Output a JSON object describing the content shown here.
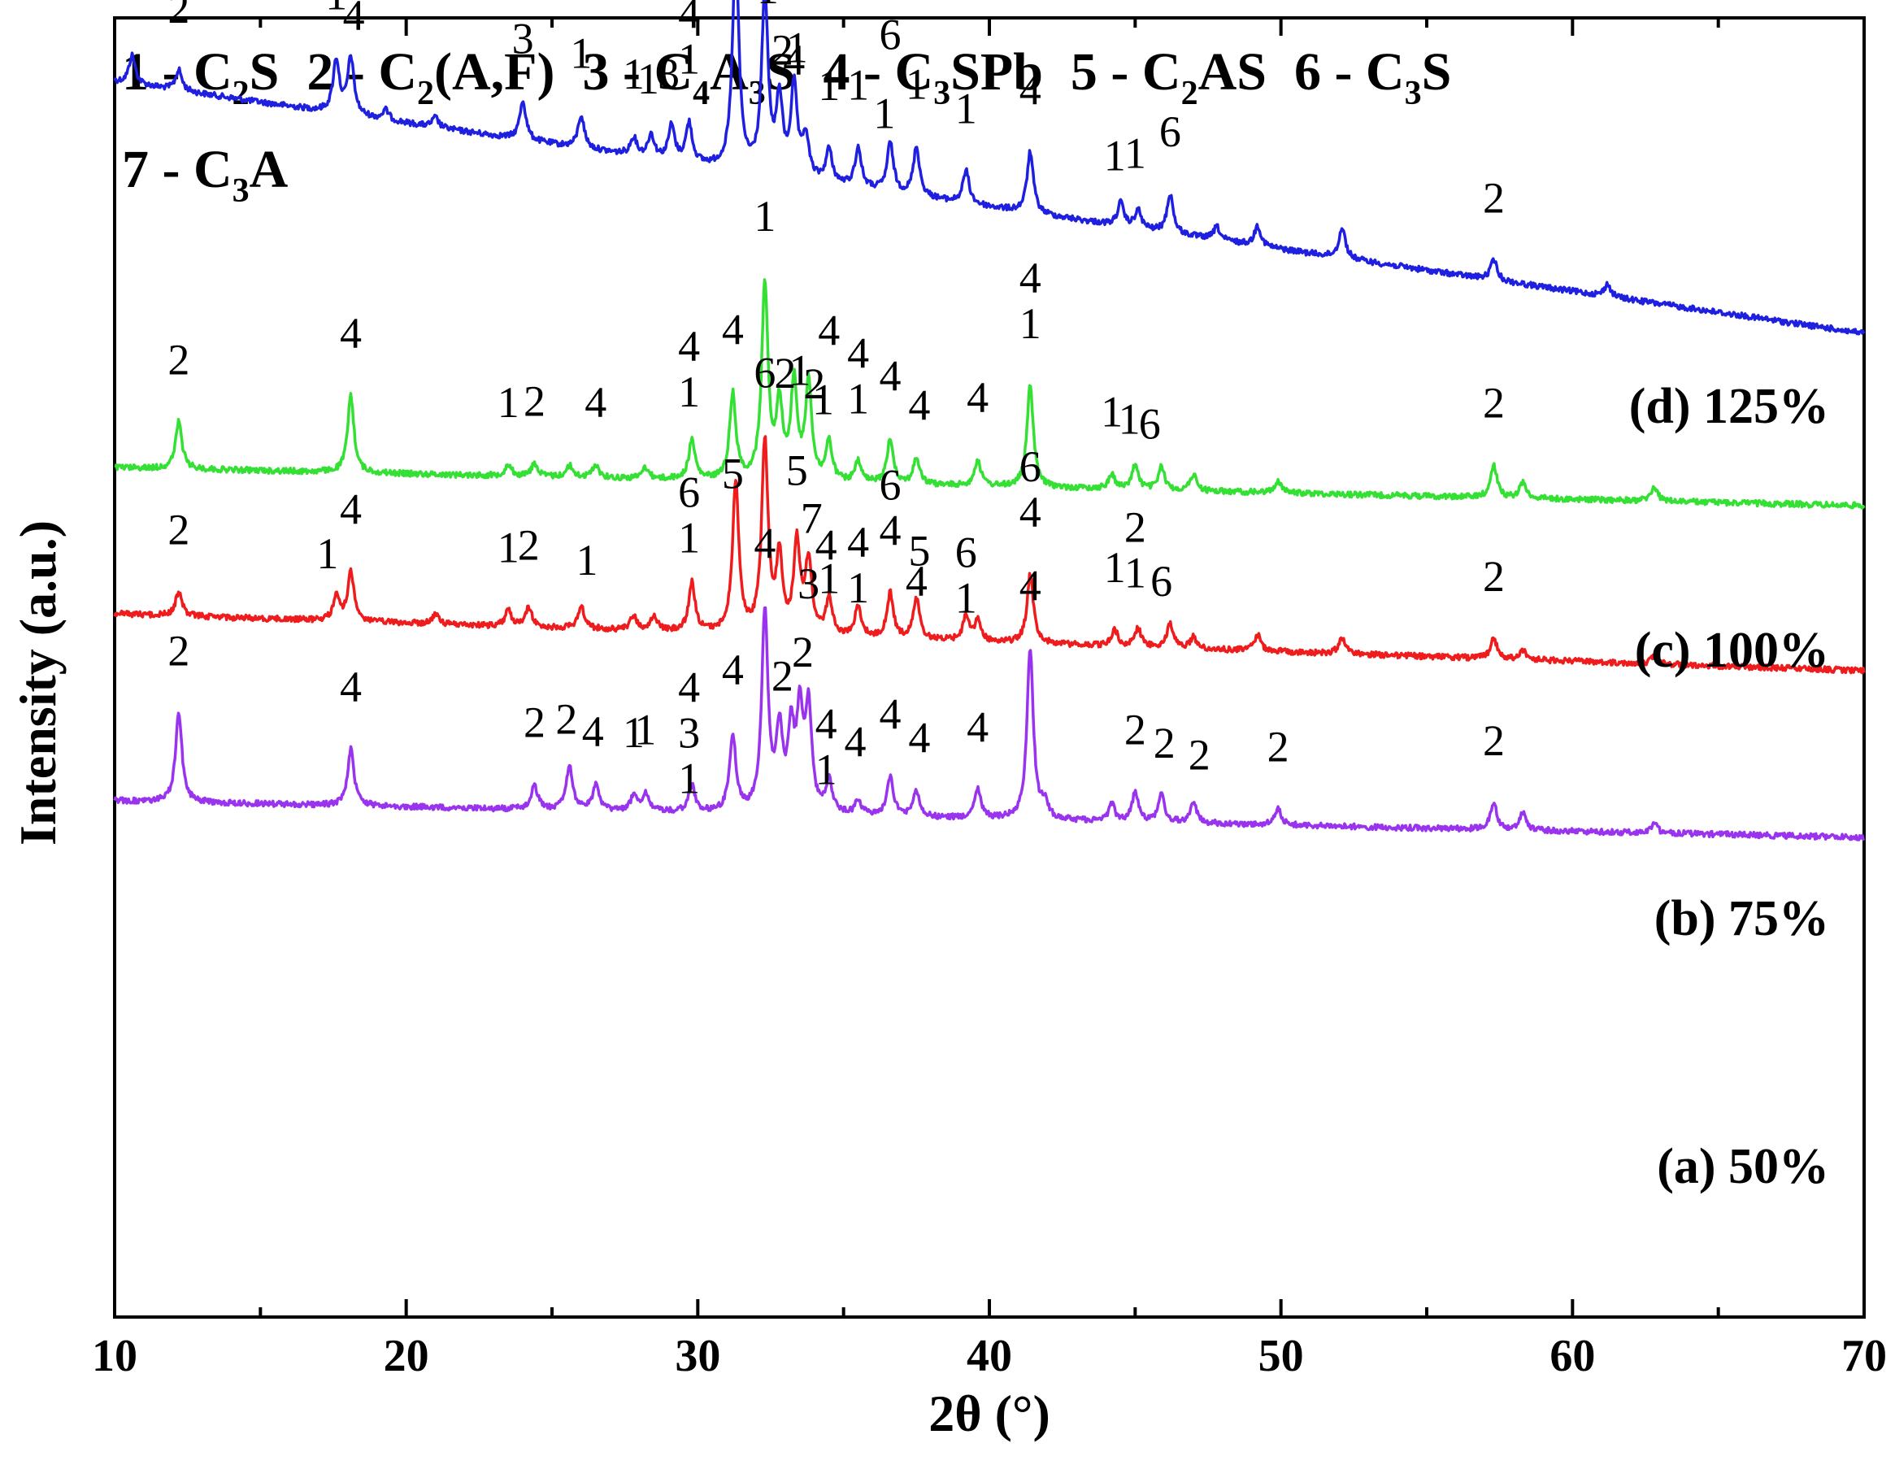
{
  "chart_data": {
    "type": "line",
    "xlabel": "2θ (°)",
    "ylabel": "Intensity (a.u.)",
    "xlim": [
      10,
      70
    ],
    "x_ticks": [
      "10",
      "20",
      "30",
      "40",
      "50",
      "60",
      "70"
    ],
    "y_ticks": "none",
    "grid": false,
    "legend": {
      "position": "top-left",
      "line1": [
        {
          "num": "1 - ",
          "base": "C",
          "parts": [
            [
              "2",
              true
            ],
            [
              "S",
              false
            ]
          ]
        },
        {
          "num": "2 - ",
          "base": "C",
          "parts": [
            [
              "2",
              true
            ],
            [
              "(A,F)",
              false
            ]
          ]
        },
        {
          "num": "3 - ",
          "base": "C",
          "parts": [
            [
              "4",
              true
            ],
            [
              "A",
              false
            ],
            [
              "3",
              true
            ],
            [
              "S",
              false
            ]
          ]
        },
        {
          "num": "4 - ",
          "base": "C",
          "parts": [
            [
              "3",
              true
            ],
            [
              "SPb",
              false
            ]
          ]
        },
        {
          "num": "5 - ",
          "base": "C",
          "parts": [
            [
              "2",
              true
            ],
            [
              "AS",
              false
            ]
          ]
        },
        {
          "num": "6 - ",
          "base": "C",
          "parts": [
            [
              "3",
              true
            ],
            [
              "S",
              false
            ]
          ]
        }
      ],
      "line2": [
        {
          "num": "7 - ",
          "base": "C",
          "parts": [
            [
              "3",
              true
            ],
            [
              "A",
              false
            ]
          ]
        }
      ]
    },
    "series": [
      {
        "name": "(d) 125%",
        "color": "#1f1fe0",
        "baseline": [
          100,
          410
        ],
        "peaks": [
          [
            10.6,
            35
          ],
          [
            12.2,
            25
          ],
          [
            17.6,
            65
          ],
          [
            18.1,
            70
          ],
          [
            19.3,
            12
          ],
          [
            21.0,
            12
          ],
          [
            24.0,
            48
          ],
          [
            26.0,
            40
          ],
          [
            27.8,
            22
          ],
          [
            28.4,
            28
          ],
          [
            29.1,
            42
          ],
          [
            29.7,
            48
          ],
          [
            31.3,
            270
          ],
          [
            32.3,
            220
          ],
          [
            32.8,
            90
          ],
          [
            33.3,
            110
          ],
          [
            33.7,
            50
          ],
          [
            34.5,
            40
          ],
          [
            35.5,
            48
          ],
          [
            36.6,
            60
          ],
          [
            37.5,
            60
          ],
          [
            39.2,
            40
          ],
          [
            41.4,
            75
          ],
          [
            44.5,
            28
          ],
          [
            45.1,
            22
          ],
          [
            46.2,
            48
          ],
          [
            47.8,
            16
          ],
          [
            49.2,
            25
          ],
          [
            52.1,
            38
          ],
          [
            57.3,
            25
          ],
          [
            61.2,
            15
          ]
        ],
        "labels": [
          [
            "2",
            12.2,
            1
          ],
          [
            "1",
            17.6,
            1
          ],
          [
            "4",
            18.2,
            1
          ],
          [
            "3",
            24.0,
            1
          ],
          [
            "1",
            26.0,
            1
          ],
          [
            "1",
            27.8,
            1
          ],
          [
            "1",
            28.3,
            1
          ],
          [
            "3",
            29.0,
            1
          ],
          [
            "4",
            29.7,
            2
          ],
          [
            "1",
            29.7,
            1
          ],
          [
            "1",
            31.3,
            1
          ],
          [
            "1",
            32.4,
            1
          ],
          [
            "2",
            32.9,
            1
          ],
          [
            "1",
            33.4,
            1
          ],
          [
            "4",
            33.3,
            0
          ],
          [
            "1",
            34.5,
            1
          ],
          [
            "1",
            35.5,
            1
          ],
          [
            "6",
            36.6,
            2
          ],
          [
            "1",
            36.4,
            1
          ],
          [
            "1",
            37.5,
            1
          ],
          [
            "1",
            39.2,
            1
          ],
          [
            "4",
            41.4,
            1
          ],
          [
            "1",
            44.3,
            1
          ],
          [
            "1",
            45.0,
            1
          ],
          [
            "6",
            46.2,
            1
          ],
          [
            "2",
            57.3,
            1
          ]
        ]
      },
      {
        "name": "(c) 100%",
        "color": "#33e033",
        "baseline": [
          575,
          622
        ],
        "peaks": [
          [
            12.2,
            58
          ],
          [
            18.1,
            95
          ],
          [
            23.5,
            14
          ],
          [
            24.4,
            16
          ],
          [
            25.6,
            14
          ],
          [
            26.5,
            16
          ],
          [
            28.2,
            14
          ],
          [
            29.8,
            48
          ],
          [
            31.2,
            105
          ],
          [
            32.3,
            240
          ],
          [
            32.8,
            90
          ],
          [
            33.3,
            120
          ],
          [
            33.8,
            120
          ],
          [
            34.5,
            48
          ],
          [
            35.5,
            25
          ],
          [
            36.6,
            55
          ],
          [
            37.5,
            32
          ],
          [
            39.6,
            32
          ],
          [
            41.4,
            125
          ],
          [
            44.2,
            18
          ],
          [
            45.0,
            30
          ],
          [
            45.9,
            28
          ],
          [
            47.0,
            20
          ],
          [
            49.9,
            15
          ],
          [
            57.3,
            40
          ],
          [
            58.3,
            20
          ],
          [
            62.8,
            18
          ]
        ],
        "labels": [
          [
            "2",
            12.2,
            1
          ],
          [
            "4",
            18.1,
            1
          ],
          [
            "1",
            23.5,
            1
          ],
          [
            "2",
            24.4,
            1
          ],
          [
            "4",
            26.5,
            1
          ],
          [
            "4",
            29.7,
            2
          ],
          [
            "1",
            29.7,
            1
          ],
          [
            "4",
            31.2,
            1
          ],
          [
            "1",
            32.3,
            1
          ],
          [
            "2",
            33.0,
            1
          ],
          [
            "1",
            33.5,
            1
          ],
          [
            "2",
            34.0,
            1
          ],
          [
            "4",
            34.5,
            2
          ],
          [
            "1",
            34.3,
            1
          ],
          [
            "4",
            35.5,
            2
          ],
          [
            "1",
            35.5,
            1
          ],
          [
            "4",
            36.6,
            1
          ],
          [
            "4",
            37.6,
            1
          ],
          [
            "4",
            39.6,
            1
          ],
          [
            "4",
            41.4,
            2
          ],
          [
            "1",
            41.4,
            1
          ],
          [
            "1",
            44.2,
            1
          ],
          [
            "1",
            44.8,
            1
          ],
          [
            "6",
            45.5,
            1
          ],
          [
            "2",
            57.3,
            1
          ]
        ]
      },
      {
        "name": "(b) 75%",
        "color": "#ee1c1c",
        "baseline": [
          755,
          825
        ],
        "peaks": [
          [
            12.2,
            30
          ],
          [
            17.6,
            30
          ],
          [
            18.1,
            60
          ],
          [
            21.0,
            12
          ],
          [
            23.5,
            20
          ],
          [
            24.2,
            24
          ],
          [
            26.0,
            28
          ],
          [
            27.8,
            18
          ],
          [
            28.5,
            18
          ],
          [
            29.8,
            60
          ],
          [
            31.3,
            185
          ],
          [
            32.3,
            235
          ],
          [
            32.8,
            90
          ],
          [
            33.4,
            110
          ],
          [
            33.8,
            90
          ],
          [
            34.5,
            45
          ],
          [
            35.5,
            38
          ],
          [
            36.6,
            55
          ],
          [
            37.5,
            50
          ],
          [
            39.2,
            30
          ],
          [
            39.6,
            25
          ],
          [
            41.4,
            85
          ],
          [
            44.3,
            20
          ],
          [
            45.1,
            22
          ],
          [
            46.2,
            30
          ],
          [
            47.0,
            14
          ],
          [
            49.2,
            20
          ],
          [
            52.1,
            20
          ],
          [
            57.3,
            25
          ],
          [
            58.3,
            12
          ],
          [
            62.8,
            10
          ]
        ],
        "labels": [
          [
            "2",
            12.2,
            1
          ],
          [
            "1",
            17.3,
            1
          ],
          [
            "4",
            18.1,
            1
          ],
          [
            "1",
            23.5,
            1
          ],
          [
            "2",
            24.2,
            1
          ],
          [
            "1",
            26.2,
            1
          ],
          [
            "6",
            29.7,
            2
          ],
          [
            "1",
            29.7,
            1
          ],
          [
            "5",
            31.2,
            1
          ],
          [
            "6",
            32.3,
            1
          ],
          [
            "5",
            33.4,
            1
          ],
          [
            "7",
            33.9,
            1
          ],
          [
            "4",
            34.4,
            1
          ],
          [
            "1",
            34.5,
            0
          ],
          [
            "4",
            35.5,
            1
          ],
          [
            "1",
            35.5,
            0
          ],
          [
            "6",
            36.6,
            2
          ],
          [
            "4",
            36.6,
            1
          ],
          [
            "5",
            37.6,
            1
          ],
          [
            "4",
            37.5,
            0
          ],
          [
            "6",
            39.2,
            1
          ],
          [
            "1",
            39.2,
            0
          ],
          [
            "6",
            41.4,
            2
          ],
          [
            "4",
            41.4,
            1
          ],
          [
            "2",
            45.0,
            2
          ],
          [
            "1",
            44.3,
            1
          ],
          [
            "1",
            45.0,
            1
          ],
          [
            "6",
            45.9,
            1
          ],
          [
            "2",
            57.3,
            1
          ]
        ]
      },
      {
        "name": "(a) 50%",
        "color": "#9933ee",
        "baseline": [
          985,
          1030
        ],
        "peaks": [
          [
            12.2,
            110
          ],
          [
            18.1,
            70
          ],
          [
            24.4,
            30
          ],
          [
            25.6,
            55
          ],
          [
            26.5,
            30
          ],
          [
            27.8,
            18
          ],
          [
            28.2,
            22
          ],
          [
            29.8,
            32
          ],
          [
            31.2,
            95
          ],
          [
            32.3,
            245
          ],
          [
            32.8,
            95
          ],
          [
            33.2,
            95
          ],
          [
            33.5,
            115
          ],
          [
            33.8,
            125
          ],
          [
            34.5,
            40
          ],
          [
            35.5,
            18
          ],
          [
            36.6,
            48
          ],
          [
            37.5,
            32
          ],
          [
            39.6,
            35
          ],
          [
            41.4,
            210
          ],
          [
            41.9,
            20
          ],
          [
            44.2,
            20
          ],
          [
            45.0,
            36
          ],
          [
            45.9,
            33
          ],
          [
            47.0,
            25
          ],
          [
            49.9,
            20
          ],
          [
            57.3,
            33
          ],
          [
            58.3,
            22
          ],
          [
            62.8,
            12
          ]
        ],
        "labels": [
          [
            "2",
            12.2,
            1
          ],
          [
            "4",
            18.1,
            1
          ],
          [
            "2",
            24.4,
            1
          ],
          [
            "2",
            25.5,
            1
          ],
          [
            "4",
            26.4,
            1
          ],
          [
            "1",
            27.8,
            1
          ],
          [
            "1",
            28.2,
            1
          ],
          [
            "4",
            29.7,
            2
          ],
          [
            "3",
            29.7,
            1
          ],
          [
            "1",
            29.7,
            0
          ],
          [
            "4",
            31.2,
            1
          ],
          [
            "4",
            32.3,
            1
          ],
          [
            "2",
            32.9,
            1
          ],
          [
            "3",
            33.8,
            2
          ],
          [
            "2",
            33.6,
            1
          ],
          [
            "4",
            34.4,
            1
          ],
          [
            "1",
            34.4,
            0
          ],
          [
            "4",
            35.4,
            1
          ],
          [
            "4",
            36.6,
            1
          ],
          [
            "4",
            37.6,
            1
          ],
          [
            "4",
            39.6,
            1
          ],
          [
            "4",
            41.4,
            1
          ],
          [
            "2",
            45.0,
            1
          ],
          [
            "2",
            46.0,
            1
          ],
          [
            "2",
            47.2,
            1
          ],
          [
            "2",
            49.9,
            1
          ],
          [
            "2",
            57.3,
            1
          ]
        ]
      }
    ]
  }
}
